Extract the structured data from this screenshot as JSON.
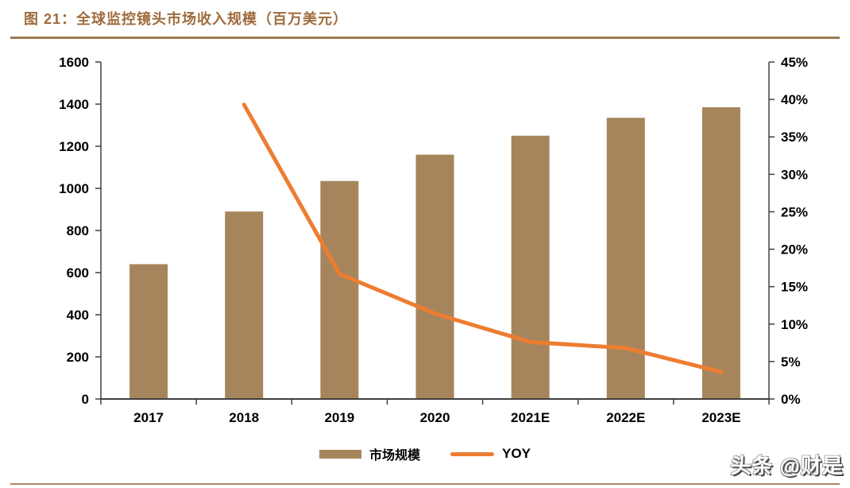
{
  "header": {
    "title": "图 21：全球监控镜头市场收入规模（百万美元）"
  },
  "footer": {
    "watermark": "头条 @财是"
  },
  "colors": {
    "title": "#9F6B3D",
    "top_divider": "#9C7B53",
    "bottom_divider": "#A98960",
    "bar": "#A7855C",
    "line": "#ED7D31",
    "axis": "#404040",
    "tick_label": "#000000"
  },
  "chart_data": {
    "type": "combo",
    "title": "全球监控镜头市场收入规模（百万美元）",
    "categories": [
      "2017",
      "2018",
      "2019",
      "2020",
      "2021E",
      "2022E",
      "2023E"
    ],
    "series": [
      {
        "name": "市场规模",
        "type": "bar",
        "axis": "left",
        "values": [
          640,
          890,
          1035,
          1160,
          1250,
          1335,
          1385
        ]
      },
      {
        "name": "YOY",
        "type": "line",
        "axis": "right",
        "values": [
          null,
          39.3,
          16.7,
          11.4,
          7.6,
          6.8,
          3.6
        ]
      }
    ],
    "left_axis": {
      "min": 0,
      "max": 1600,
      "step": 200,
      "ticks": [
        "0",
        "200",
        "400",
        "600",
        "800",
        "1000",
        "1200",
        "1400",
        "1600"
      ]
    },
    "right_axis": {
      "min": 0,
      "max": 45,
      "step": 5,
      "ticks": [
        "0%",
        "5%",
        "10%",
        "15%",
        "20%",
        "25%",
        "30%",
        "35%",
        "40%",
        "45%"
      ]
    },
    "grid": false,
    "legend_position": "bottom"
  }
}
